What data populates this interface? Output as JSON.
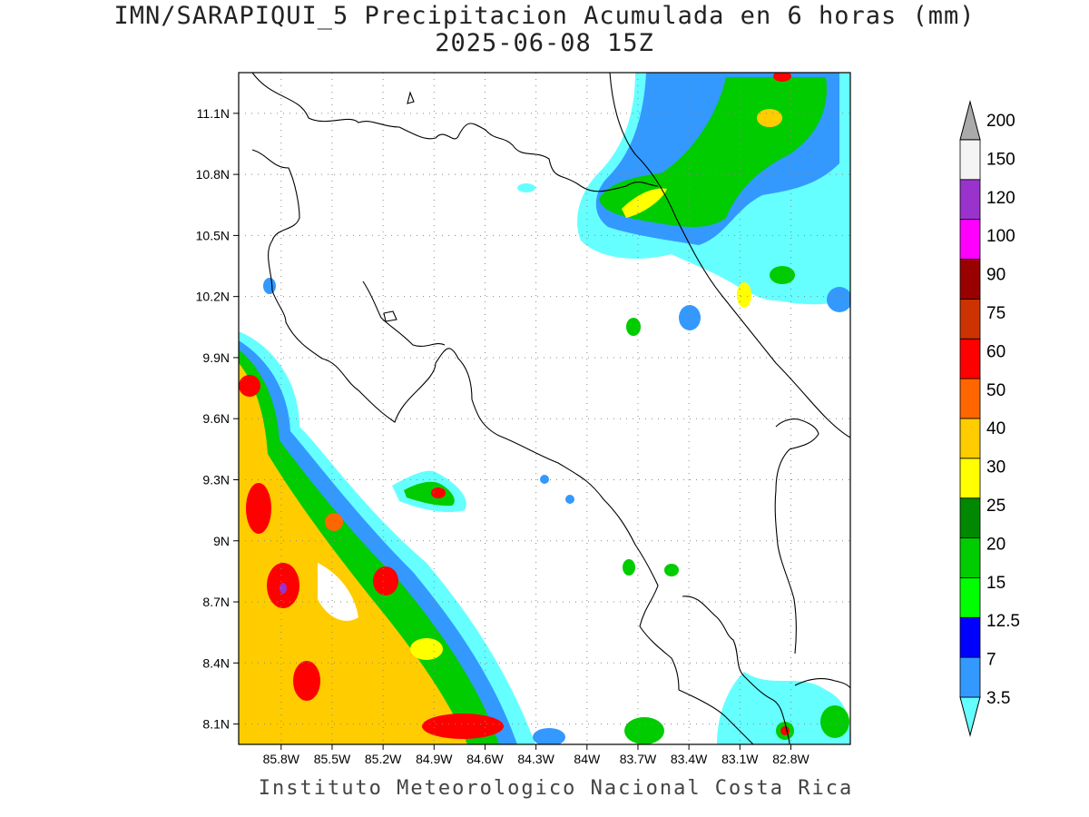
{
  "title": {
    "line1": "IMN/SARAPIQUI_5 Precipitacion Acumulada en 6 horas (mm)",
    "line2": "2025-06-08 15Z"
  },
  "footer": "Instituto Meteorologico Nacional Costa Rica",
  "map": {
    "lon_range": [
      -86.05,
      -82.45
    ],
    "lat_range": [
      8.0,
      11.3
    ],
    "lat_ticks": [
      {
        "value": 8.1,
        "label": "8.1N"
      },
      {
        "value": 8.4,
        "label": "8.4N"
      },
      {
        "value": 8.7,
        "label": "8.7N"
      },
      {
        "value": 9.0,
        "label": "9N"
      },
      {
        "value": 9.3,
        "label": "9.3N"
      },
      {
        "value": 9.6,
        "label": "9.6N"
      },
      {
        "value": 9.9,
        "label": "9.9N"
      },
      {
        "value": 10.2,
        "label": "10.2N"
      },
      {
        "value": 10.5,
        "label": "10.5N"
      },
      {
        "value": 10.8,
        "label": "10.8N"
      },
      {
        "value": 11.1,
        "label": "11.1N"
      }
    ],
    "lon_ticks": [
      {
        "value": -85.8,
        "label": "85.8W"
      },
      {
        "value": -85.5,
        "label": "85.5W"
      },
      {
        "value": -85.2,
        "label": "85.2W"
      },
      {
        "value": -84.9,
        "label": "84.9W"
      },
      {
        "value": -84.6,
        "label": "84.6W"
      },
      {
        "value": -84.3,
        "label": "84.3W"
      },
      {
        "value": -84.0,
        "label": "84W"
      },
      {
        "value": -83.7,
        "label": "83.7W"
      },
      {
        "value": -83.4,
        "label": "83.4W"
      },
      {
        "value": -83.1,
        "label": "83.1W"
      },
      {
        "value": -82.8,
        "label": "82.8W"
      }
    ],
    "grid": "dotted"
  },
  "colorbar": {
    "levels": [
      {
        "label": "3.5",
        "color": "#66ffff"
      },
      {
        "label": "7",
        "color": "#3399ff"
      },
      {
        "label": "12.5",
        "color": "#0000ff"
      },
      {
        "label": "15",
        "color": "#00ff00"
      },
      {
        "label": "20",
        "color": "#00cc00"
      },
      {
        "label": "25",
        "color": "#008800"
      },
      {
        "label": "30",
        "color": "#ffff00"
      },
      {
        "label": "40",
        "color": "#ffcc00"
      },
      {
        "label": "50",
        "color": "#ff6600"
      },
      {
        "label": "60",
        "color": "#ff0000"
      },
      {
        "label": "75",
        "color": "#cc3300"
      },
      {
        "label": "90",
        "color": "#990000"
      },
      {
        "label": "100",
        "color": "#ff00ff"
      },
      {
        "label": "120",
        "color": "#9933cc"
      },
      {
        "label": "150",
        "color": "#f4f4f4"
      },
      {
        "label": "200",
        "color": "#aaaaaa"
      }
    ]
  }
}
